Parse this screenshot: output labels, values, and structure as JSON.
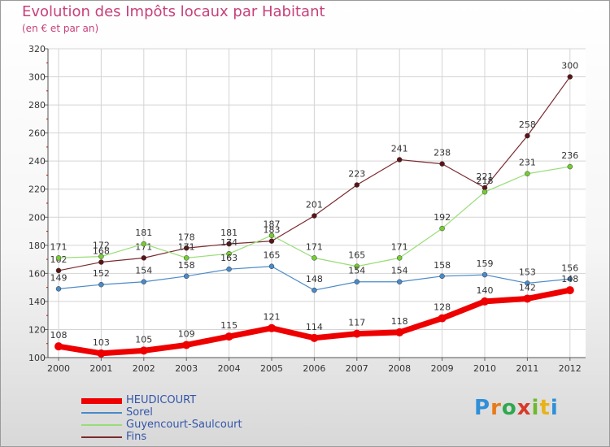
{
  "title": "Evolution des Impôts locaux par Habitant",
  "subtitle": "(en € et par an)",
  "logo": {
    "name": "Proxiti",
    "letters": [
      "P",
      "r",
      "o",
      "x",
      "i",
      "t",
      "i"
    ],
    "colors": [
      "#2f8fd8",
      "#e87a17",
      "#2fa84f",
      "#d83a2a",
      "#6fb92c",
      "#e8b317",
      "#2f8fd8"
    ]
  },
  "chart_data": {
    "type": "line",
    "x": [
      "2000",
      "2001",
      "2002",
      "2003",
      "2004",
      "2005",
      "2006",
      "2007",
      "2008",
      "2009",
      "2010",
      "2011",
      "2012"
    ],
    "ylim": [
      100,
      320
    ],
    "yticks": [
      100,
      120,
      140,
      160,
      180,
      200,
      220,
      240,
      260,
      280,
      300,
      320
    ],
    "grid": true,
    "series": [
      {
        "name": "Fins",
        "color": "#7a2a2f",
        "point_color": "#5a1418",
        "values": [
          162,
          168,
          171,
          178,
          181,
          183,
          201,
          223,
          241,
          238,
          221,
          258,
          300
        ]
      },
      {
        "name": "Guyencourt-Saulcourt",
        "color": "#99dd77",
        "point_color": "#77cc33",
        "values": [
          171,
          172,
          181,
          171,
          174,
          187,
          171,
          165,
          171,
          192,
          218,
          231,
          236
        ]
      },
      {
        "name": "Sorel",
        "color": "#4a8ac8",
        "point_color": "#4a8ac8",
        "values": [
          149,
          152,
          154,
          158,
          163,
          165,
          148,
          154,
          154,
          158,
          159,
          153,
          156
        ]
      },
      {
        "name": "HEUDICOURT",
        "color": "#ee0000",
        "point_color": "#ee0000",
        "values": [
          108,
          103,
          105,
          109,
          115,
          121,
          114,
          117,
          118,
          128,
          140,
          142,
          148
        ]
      }
    ],
    "legend_order": [
      "HEUDICOURT",
      "Sorel",
      "Guyencourt-Saulcourt",
      "Fins"
    ],
    "legend_position": "bottom-left"
  }
}
